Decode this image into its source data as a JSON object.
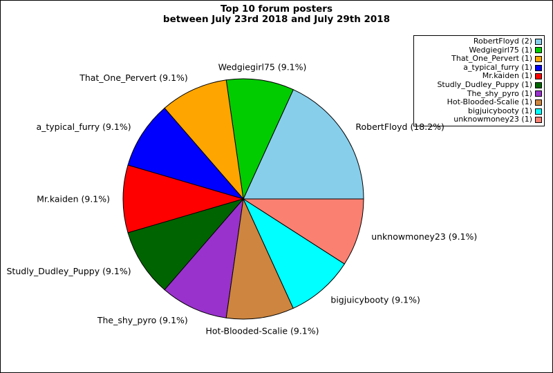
{
  "title": {
    "line1": "Top 10 forum posters",
    "line2": "between July 23rd 2018 and July 29th 2018"
  },
  "chart_data": {
    "type": "pie",
    "title": "Top 10 forum posters between July 23rd 2018 and July 29th 2018",
    "total_posts": 11,
    "start_angle_deg": 0,
    "direction": "counterclockwise",
    "legend_position": "upper right",
    "slices": [
      {
        "label": "RobertFloyd",
        "value": 2,
        "percent": 18.2,
        "pie_label": "RobertFloyd (18.2%)",
        "legend_label": "RobertFloyd (2)",
        "color": "#87CEEB"
      },
      {
        "label": "Wedgiegirl75",
        "value": 1,
        "percent": 9.1,
        "pie_label": "Wedgiegirl75 (9.1%)",
        "legend_label": "Wedgiegirl75 (1)",
        "color": "#00CC00"
      },
      {
        "label": "That_One_Pervert",
        "value": 1,
        "percent": 9.1,
        "pie_label": "That_One_Pervert (9.1%)",
        "legend_label": "That_One_Pervert (1)",
        "color": "#FFA500"
      },
      {
        "label": "a_typical_furry",
        "value": 1,
        "percent": 9.1,
        "pie_label": "a_typical_furry (9.1%)",
        "legend_label": "a_typical_furry (1)",
        "color": "#0000FF"
      },
      {
        "label": "Mr.kaiden",
        "value": 1,
        "percent": 9.1,
        "pie_label": "Mr.kaiden (9.1%)",
        "legend_label": "Mr.kaiden (1)",
        "color": "#FF0000"
      },
      {
        "label": "Studly_Dudley_Puppy",
        "value": 1,
        "percent": 9.1,
        "pie_label": "Studly_Dudley_Puppy (9.1%)",
        "legend_label": "Studly_Dudley_Puppy (1)",
        "color": "#006400"
      },
      {
        "label": "The_shy_pyro",
        "value": 1,
        "percent": 9.1,
        "pie_label": "The_shy_pyro (9.1%)",
        "legend_label": "The_shy_pyro (1)",
        "color": "#9932CC"
      },
      {
        "label": "Hot-Blooded-Scalie",
        "value": 1,
        "percent": 9.1,
        "pie_label": "Hot-Blooded-Scalie (9.1%)",
        "legend_label": "Hot-Blooded-Scalie (1)",
        "color": "#CD853F"
      },
      {
        "label": "bigjuicybooty",
        "value": 1,
        "percent": 9.1,
        "pie_label": "bigjuicybooty (9.1%)",
        "legend_label": "bigjuicybooty (1)",
        "color": "#00FFFF"
      },
      {
        "label": "unknowmoney23",
        "value": 1,
        "percent": 9.1,
        "pie_label": "unknowmoney23 (9.1%)",
        "legend_label": "unknowmoney23 (1)",
        "color": "#FA8072"
      }
    ]
  }
}
